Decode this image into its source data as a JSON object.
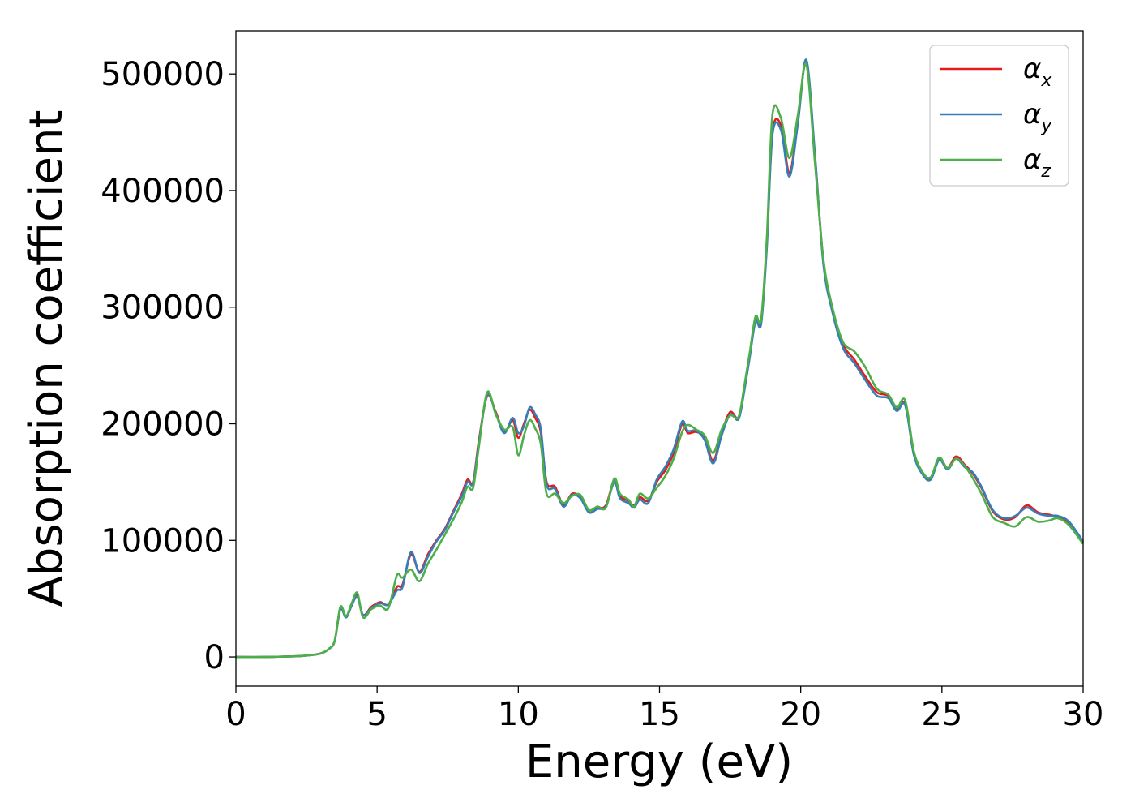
{
  "chart_data": {
    "type": "line",
    "title": "",
    "xlabel": "Energy (eV)",
    "ylabel": "Absorption coefficient",
    "xlim": [
      0,
      30
    ],
    "ylim": [
      -25000,
      537000
    ],
    "xticks": [
      0,
      5,
      10,
      15,
      20,
      25,
      30
    ],
    "xtick_labels": [
      "0",
      "5",
      "10",
      "15",
      "20",
      "25",
      "30"
    ],
    "yticks": [
      0,
      100000,
      200000,
      300000,
      400000,
      500000
    ],
    "ytick_labels": [
      "0",
      "100000",
      "200000",
      "300000",
      "400000",
      "500000"
    ],
    "grid": false,
    "legend_position": "top-right",
    "series": [
      {
        "name": "α",
        "subscript": "x",
        "color": "#e41a1c",
        "x": [
          0,
          1,
          2,
          2.5,
          3,
          3.3,
          3.5,
          3.7,
          3.9,
          4.1,
          4.3,
          4.5,
          4.8,
          5.1,
          5.4,
          5.7,
          5.9,
          6.2,
          6.5,
          6.8,
          7.1,
          7.4,
          7.7,
          8.0,
          8.2,
          8.4,
          8.6,
          8.9,
          9.2,
          9.5,
          9.8,
          10.0,
          10.2,
          10.4,
          10.6,
          10.8,
          11.0,
          11.3,
          11.6,
          11.9,
          12.2,
          12.5,
          12.8,
          13.1,
          13.4,
          13.6,
          13.9,
          14.1,
          14.3,
          14.6,
          14.9,
          15.2,
          15.5,
          15.8,
          16.0,
          16.3,
          16.6,
          16.9,
          17.2,
          17.5,
          17.8,
          18.0,
          18.2,
          18.4,
          18.6,
          18.8,
          19.0,
          19.3,
          19.6,
          19.9,
          20.2,
          20.5,
          20.8,
          21.1,
          21.5,
          21.9,
          22.3,
          22.7,
          23.1,
          23.4,
          23.7,
          24.0,
          24.3,
          24.6,
          24.9,
          25.2,
          25.5,
          25.8,
          26.1,
          26.4,
          26.8,
          27.2,
          27.6,
          28.0,
          28.4,
          28.8,
          29.1,
          29.5,
          30.0
        ],
        "y": [
          0,
          0,
          500,
          1200,
          3000,
          7000,
          14000,
          42000,
          34000,
          45000,
          53000,
          36000,
          43000,
          47000,
          45000,
          60000,
          62000,
          88000,
          73000,
          88000,
          100000,
          110000,
          125000,
          140000,
          152000,
          150000,
          185000,
          224000,
          210000,
          193000,
          203000,
          188000,
          200000,
          212000,
          205000,
          192000,
          150000,
          146000,
          130000,
          140000,
          137000,
          126000,
          128000,
          130000,
          152000,
          138000,
          134000,
          130000,
          137000,
          134000,
          150000,
          160000,
          175000,
          200000,
          192000,
          193000,
          188000,
          168000,
          192000,
          210000,
          205000,
          230000,
          260000,
          290000,
          288000,
          355000,
          450000,
          456000,
          415000,
          460000,
          510000,
          430000,
          340000,
          300000,
          268000,
          255000,
          240000,
          227000,
          224000,
          213000,
          217000,
          175000,
          158000,
          153000,
          170000,
          162000,
          172000,
          165000,
          157000,
          145000,
          125000,
          118000,
          120000,
          130000,
          124000,
          122000,
          120000,
          115000,
          98000
        ]
      },
      {
        "name": "α",
        "subscript": "y",
        "color": "#377eb8",
        "x": [
          0,
          1,
          2,
          2.5,
          3,
          3.3,
          3.5,
          3.7,
          3.9,
          4.1,
          4.3,
          4.5,
          4.8,
          5.1,
          5.4,
          5.7,
          5.9,
          6.2,
          6.5,
          6.8,
          7.1,
          7.4,
          7.7,
          8.0,
          8.2,
          8.4,
          8.6,
          8.9,
          9.2,
          9.5,
          9.8,
          10.0,
          10.2,
          10.4,
          10.6,
          10.8,
          11.0,
          11.3,
          11.6,
          11.9,
          12.2,
          12.5,
          12.8,
          13.1,
          13.4,
          13.6,
          13.9,
          14.1,
          14.3,
          14.6,
          14.9,
          15.2,
          15.5,
          15.8,
          16.0,
          16.3,
          16.6,
          16.9,
          17.2,
          17.5,
          17.8,
          18.0,
          18.2,
          18.4,
          18.6,
          18.8,
          19.0,
          19.3,
          19.6,
          19.9,
          20.2,
          20.5,
          20.8,
          21.1,
          21.5,
          21.9,
          22.3,
          22.7,
          23.1,
          23.4,
          23.7,
          24.0,
          24.3,
          24.6,
          24.9,
          25.2,
          25.5,
          25.8,
          26.1,
          26.4,
          26.8,
          27.2,
          27.6,
          28.0,
          28.4,
          28.8,
          29.1,
          29.5,
          30.0
        ],
        "y": [
          0,
          0,
          500,
          1200,
          3000,
          7000,
          14000,
          41000,
          34000,
          44000,
          52000,
          36000,
          42000,
          46000,
          45000,
          57000,
          60000,
          90000,
          72000,
          86000,
          99000,
          109000,
          124000,
          138000,
          150000,
          149000,
          183000,
          225000,
          209000,
          192000,
          205000,
          192000,
          198000,
          214000,
          208000,
          195000,
          148000,
          144000,
          129000,
          139000,
          136000,
          124000,
          127000,
          129000,
          150000,
          136000,
          132000,
          128000,
          135000,
          132000,
          152000,
          163000,
          178000,
          202000,
          194000,
          194000,
          186000,
          166000,
          190000,
          208000,
          204000,
          228000,
          258000,
          288000,
          286000,
          352000,
          448000,
          452000,
          412000,
          458000,
          512000,
          432000,
          338000,
          298000,
          265000,
          252000,
          237000,
          224000,
          222000,
          211000,
          216000,
          174000,
          157000,
          152000,
          169000,
          161000,
          170000,
          163000,
          158000,
          146000,
          126000,
          119000,
          121000,
          128000,
          123000,
          121000,
          121000,
          116000,
          99000
        ]
      },
      {
        "name": "α",
        "subscript": "z",
        "color": "#4daf4a",
        "x": [
          0,
          1,
          2,
          2.5,
          3,
          3.3,
          3.5,
          3.7,
          3.9,
          4.1,
          4.3,
          4.5,
          4.8,
          5.1,
          5.4,
          5.7,
          5.9,
          6.2,
          6.5,
          6.8,
          7.1,
          7.4,
          7.7,
          8.0,
          8.2,
          8.4,
          8.6,
          8.9,
          9.2,
          9.5,
          9.8,
          10.0,
          10.2,
          10.4,
          10.6,
          10.8,
          11.0,
          11.3,
          11.6,
          11.9,
          12.2,
          12.5,
          12.8,
          13.1,
          13.4,
          13.6,
          13.9,
          14.1,
          14.3,
          14.6,
          14.9,
          15.2,
          15.5,
          15.8,
          16.0,
          16.3,
          16.6,
          16.9,
          17.2,
          17.5,
          17.8,
          18.0,
          18.2,
          18.4,
          18.6,
          18.8,
          19.0,
          19.3,
          19.6,
          19.9,
          20.2,
          20.5,
          20.8,
          21.1,
          21.5,
          21.9,
          22.3,
          22.7,
          23.1,
          23.4,
          23.7,
          24.0,
          24.3,
          24.6,
          24.9,
          25.2,
          25.5,
          25.8,
          26.1,
          26.4,
          26.8,
          27.2,
          27.6,
          28.0,
          28.4,
          28.8,
          29.1,
          29.5,
          30.0
        ],
        "y": [
          0,
          0,
          500,
          1200,
          3000,
          7000,
          14000,
          43000,
          35000,
          46000,
          55000,
          34000,
          41000,
          44000,
          42000,
          70000,
          68000,
          75000,
          65000,
          80000,
          92000,
          105000,
          118000,
          133000,
          146000,
          145000,
          180000,
          227000,
          208000,
          195000,
          197000,
          173000,
          190000,
          203000,
          196000,
          182000,
          140000,
          140000,
          132000,
          138000,
          139000,
          126000,
          129000,
          128000,
          153000,
          140000,
          135000,
          129000,
          140000,
          136000,
          145000,
          155000,
          170000,
          193000,
          199000,
          195000,
          190000,
          175000,
          195000,
          207000,
          206000,
          232000,
          262000,
          292000,
          290000,
          360000,
          465000,
          462000,
          428000,
          465000,
          508000,
          425000,
          342000,
          302000,
          270000,
          262000,
          248000,
          230000,
          225000,
          214000,
          220000,
          177000,
          159000,
          154000,
          171000,
          162000,
          170000,
          164000,
          153000,
          140000,
          120000,
          115000,
          112000,
          120000,
          116000,
          117000,
          119000,
          113000,
          97000
        ]
      }
    ]
  }
}
